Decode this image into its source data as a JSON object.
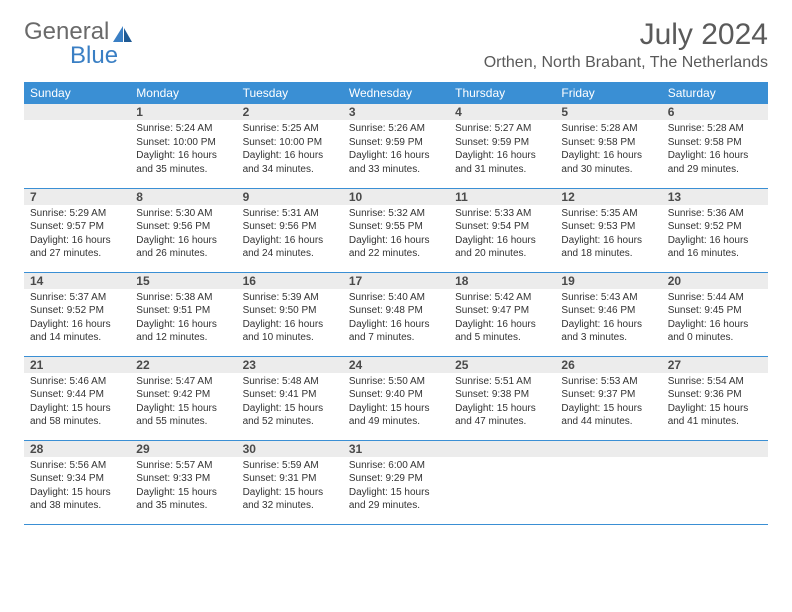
{
  "logo": {
    "text1": "General",
    "text2": "Blue"
  },
  "title": "July 2024",
  "location": "Orthen, North Brabant, The Netherlands",
  "colors": {
    "header_bg": "#3a8fd4",
    "header_text": "#ffffff",
    "daynum_bg": "#ececec",
    "rule": "#3a8fd4",
    "logo_gray": "#6a6a6a",
    "logo_blue": "#3a7fc4"
  },
  "weekdays": [
    "Sunday",
    "Monday",
    "Tuesday",
    "Wednesday",
    "Thursday",
    "Friday",
    "Saturday"
  ],
  "weeks": [
    [
      null,
      {
        "n": "1",
        "sunrise": "5:24 AM",
        "sunset": "10:00 PM",
        "day": "16 hours and 35 minutes."
      },
      {
        "n": "2",
        "sunrise": "5:25 AM",
        "sunset": "10:00 PM",
        "day": "16 hours and 34 minutes."
      },
      {
        "n": "3",
        "sunrise": "5:26 AM",
        "sunset": "9:59 PM",
        "day": "16 hours and 33 minutes."
      },
      {
        "n": "4",
        "sunrise": "5:27 AM",
        "sunset": "9:59 PM",
        "day": "16 hours and 31 minutes."
      },
      {
        "n": "5",
        "sunrise": "5:28 AM",
        "sunset": "9:58 PM",
        "day": "16 hours and 30 minutes."
      },
      {
        "n": "6",
        "sunrise": "5:28 AM",
        "sunset": "9:58 PM",
        "day": "16 hours and 29 minutes."
      }
    ],
    [
      {
        "n": "7",
        "sunrise": "5:29 AM",
        "sunset": "9:57 PM",
        "day": "16 hours and 27 minutes."
      },
      {
        "n": "8",
        "sunrise": "5:30 AM",
        "sunset": "9:56 PM",
        "day": "16 hours and 26 minutes."
      },
      {
        "n": "9",
        "sunrise": "5:31 AM",
        "sunset": "9:56 PM",
        "day": "16 hours and 24 minutes."
      },
      {
        "n": "10",
        "sunrise": "5:32 AM",
        "sunset": "9:55 PM",
        "day": "16 hours and 22 minutes."
      },
      {
        "n": "11",
        "sunrise": "5:33 AM",
        "sunset": "9:54 PM",
        "day": "16 hours and 20 minutes."
      },
      {
        "n": "12",
        "sunrise": "5:35 AM",
        "sunset": "9:53 PM",
        "day": "16 hours and 18 minutes."
      },
      {
        "n": "13",
        "sunrise": "5:36 AM",
        "sunset": "9:52 PM",
        "day": "16 hours and 16 minutes."
      }
    ],
    [
      {
        "n": "14",
        "sunrise": "5:37 AM",
        "sunset": "9:52 PM",
        "day": "16 hours and 14 minutes."
      },
      {
        "n": "15",
        "sunrise": "5:38 AM",
        "sunset": "9:51 PM",
        "day": "16 hours and 12 minutes."
      },
      {
        "n": "16",
        "sunrise": "5:39 AM",
        "sunset": "9:50 PM",
        "day": "16 hours and 10 minutes."
      },
      {
        "n": "17",
        "sunrise": "5:40 AM",
        "sunset": "9:48 PM",
        "day": "16 hours and 7 minutes."
      },
      {
        "n": "18",
        "sunrise": "5:42 AM",
        "sunset": "9:47 PM",
        "day": "16 hours and 5 minutes."
      },
      {
        "n": "19",
        "sunrise": "5:43 AM",
        "sunset": "9:46 PM",
        "day": "16 hours and 3 minutes."
      },
      {
        "n": "20",
        "sunrise": "5:44 AM",
        "sunset": "9:45 PM",
        "day": "16 hours and 0 minutes."
      }
    ],
    [
      {
        "n": "21",
        "sunrise": "5:46 AM",
        "sunset": "9:44 PM",
        "day": "15 hours and 58 minutes."
      },
      {
        "n": "22",
        "sunrise": "5:47 AM",
        "sunset": "9:42 PM",
        "day": "15 hours and 55 minutes."
      },
      {
        "n": "23",
        "sunrise": "5:48 AM",
        "sunset": "9:41 PM",
        "day": "15 hours and 52 minutes."
      },
      {
        "n": "24",
        "sunrise": "5:50 AM",
        "sunset": "9:40 PM",
        "day": "15 hours and 49 minutes."
      },
      {
        "n": "25",
        "sunrise": "5:51 AM",
        "sunset": "9:38 PM",
        "day": "15 hours and 47 minutes."
      },
      {
        "n": "26",
        "sunrise": "5:53 AM",
        "sunset": "9:37 PM",
        "day": "15 hours and 44 minutes."
      },
      {
        "n": "27",
        "sunrise": "5:54 AM",
        "sunset": "9:36 PM",
        "day": "15 hours and 41 minutes."
      }
    ],
    [
      {
        "n": "28",
        "sunrise": "5:56 AM",
        "sunset": "9:34 PM",
        "day": "15 hours and 38 minutes."
      },
      {
        "n": "29",
        "sunrise": "5:57 AM",
        "sunset": "9:33 PM",
        "day": "15 hours and 35 minutes."
      },
      {
        "n": "30",
        "sunrise": "5:59 AM",
        "sunset": "9:31 PM",
        "day": "15 hours and 32 minutes."
      },
      {
        "n": "31",
        "sunrise": "6:00 AM",
        "sunset": "9:29 PM",
        "day": "15 hours and 29 minutes."
      },
      null,
      null,
      null
    ]
  ],
  "labels": {
    "sunrise": "Sunrise: ",
    "sunset": "Sunset: ",
    "daylight": "Daylight: "
  }
}
